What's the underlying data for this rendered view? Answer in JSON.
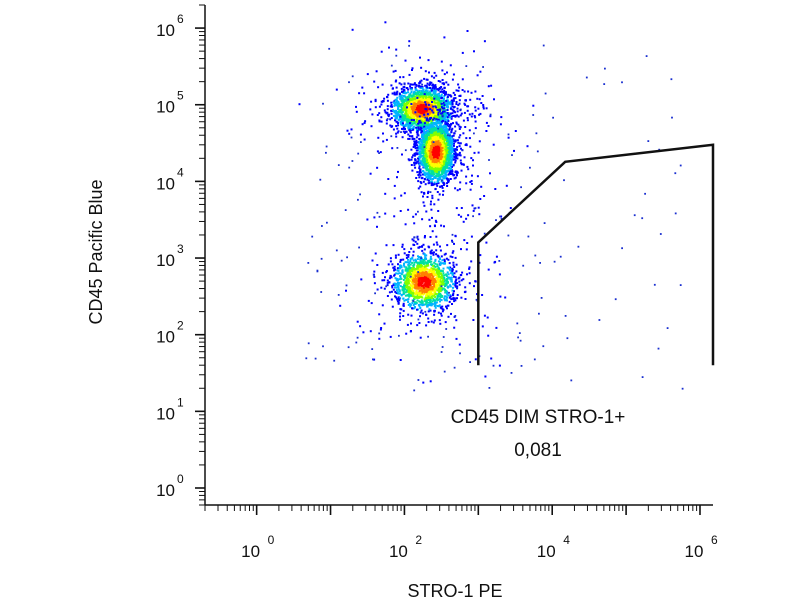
{
  "chart_data": {
    "type": "scatter",
    "subtype": "flow-cytometry-density-dot-plot",
    "xlabel": "STRO-1 PE",
    "ylabel": "CD45 Pacific Blue",
    "x_scale": "log",
    "y_scale": "log",
    "xlim": [
      0.2,
      1500000
    ],
    "ylim": [
      0.6,
      2000000
    ],
    "x_ticks": [
      {
        "base": "10",
        "exp": "0",
        "value": 1
      },
      {
        "base": "10",
        "exp": "2",
        "value": 100
      },
      {
        "base": "10",
        "exp": "4",
        "value": 10000
      },
      {
        "base": "10",
        "exp": "6",
        "value": 1000000
      }
    ],
    "y_ticks": [
      {
        "base": "10",
        "exp": "0",
        "value": 1
      },
      {
        "base": "10",
        "exp": "1",
        "value": 10
      },
      {
        "base": "10",
        "exp": "2",
        "value": 100
      },
      {
        "base": "10",
        "exp": "3",
        "value": 1000
      },
      {
        "base": "10",
        "exp": "4",
        "value": 10000
      },
      {
        "base": "10",
        "exp": "5",
        "value": 100000
      },
      {
        "base": "10",
        "exp": "6",
        "value": 1000000
      }
    ],
    "density_colormap": [
      "#0000ff",
      "#00b4ff",
      "#00e0a0",
      "#80ff00",
      "#ffff00",
      "#ff8000",
      "#ff0000"
    ],
    "populations": [
      {
        "x": 170,
        "y": 90000,
        "sx": 0.2,
        "sy": 0.14,
        "weight": 0.9,
        "peak_color": "#ffd000"
      },
      {
        "x": 260,
        "y": 25000,
        "sx": 0.12,
        "sy": 0.2,
        "weight": 1.0,
        "peak_color": "#ff0000"
      },
      {
        "x": 180,
        "y": 500,
        "sx": 0.2,
        "sy": 0.18,
        "weight": 0.7,
        "peak_color": "#c0ff00"
      }
    ],
    "gate": {
      "label": "CD45 DIM STRO-1+",
      "value": "0,081",
      "vertices": [
        [
          1000,
          40
        ],
        [
          1000,
          1600
        ],
        [
          15000,
          18000
        ],
        [
          1500000,
          30000
        ],
        [
          1500000,
          40
        ]
      ]
    }
  }
}
